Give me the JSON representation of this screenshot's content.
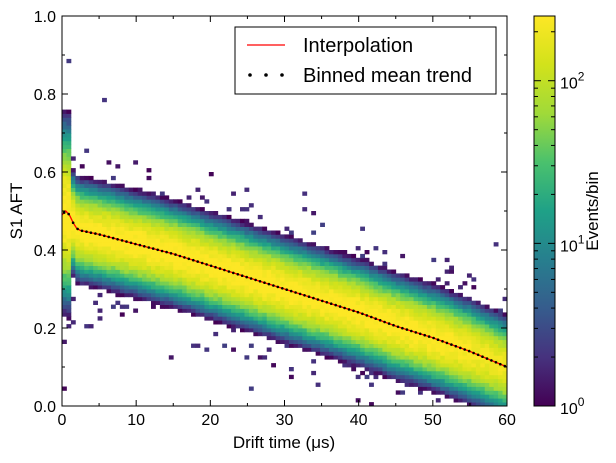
{
  "chart_data": {
    "type": "heatmap",
    "xlabel": "Drift time (μs)",
    "ylabel": "S1 AFT",
    "xlim": [
      0,
      60
    ],
    "ylim": [
      0.0,
      1.0
    ],
    "x_ticks": [
      "0",
      "10",
      "20",
      "30",
      "40",
      "50",
      "60"
    ],
    "y_ticks": [
      "0.0",
      "0.2",
      "0.4",
      "0.6",
      "0.8",
      "1.0"
    ],
    "colorbar": {
      "label": "Events/bin",
      "scale": "log",
      "range": [
        1,
        250
      ],
      "tick_labels": [
        "10^0",
        "10^1",
        "10^2"
      ],
      "colormap": "viridis"
    },
    "legend": {
      "placement": "top-right",
      "entries": [
        {
          "label": "Interpolation",
          "style": "line",
          "color": "#ff0000"
        },
        {
          "label": "Binned mean trend",
          "style": "dots",
          "color": "#000000"
        }
      ]
    },
    "series": [
      {
        "name": "Interpolation",
        "x": [
          0,
          0.5,
          1,
          1.5,
          2,
          2.5,
          3,
          5,
          10,
          15,
          20,
          25,
          30,
          35,
          40,
          45,
          50,
          55,
          60
        ],
        "y": [
          0.49,
          0.5,
          0.49,
          0.47,
          0.455,
          0.45,
          0.448,
          0.44,
          0.415,
          0.39,
          0.36,
          0.33,
          0.3,
          0.27,
          0.24,
          0.205,
          0.175,
          0.14,
          0.1
        ]
      },
      {
        "name": "Binned mean trend",
        "x": [
          0,
          0.5,
          1,
          1.5,
          2,
          2.5,
          3,
          5,
          10,
          15,
          20,
          25,
          30,
          35,
          40,
          45,
          50,
          55,
          60
        ],
        "y": [
          0.49,
          0.5,
          0.49,
          0.47,
          0.455,
          0.45,
          0.448,
          0.44,
          0.415,
          0.39,
          0.36,
          0.33,
          0.3,
          0.27,
          0.24,
          0.205,
          0.175,
          0.14,
          0.1
        ]
      }
    ]
  }
}
